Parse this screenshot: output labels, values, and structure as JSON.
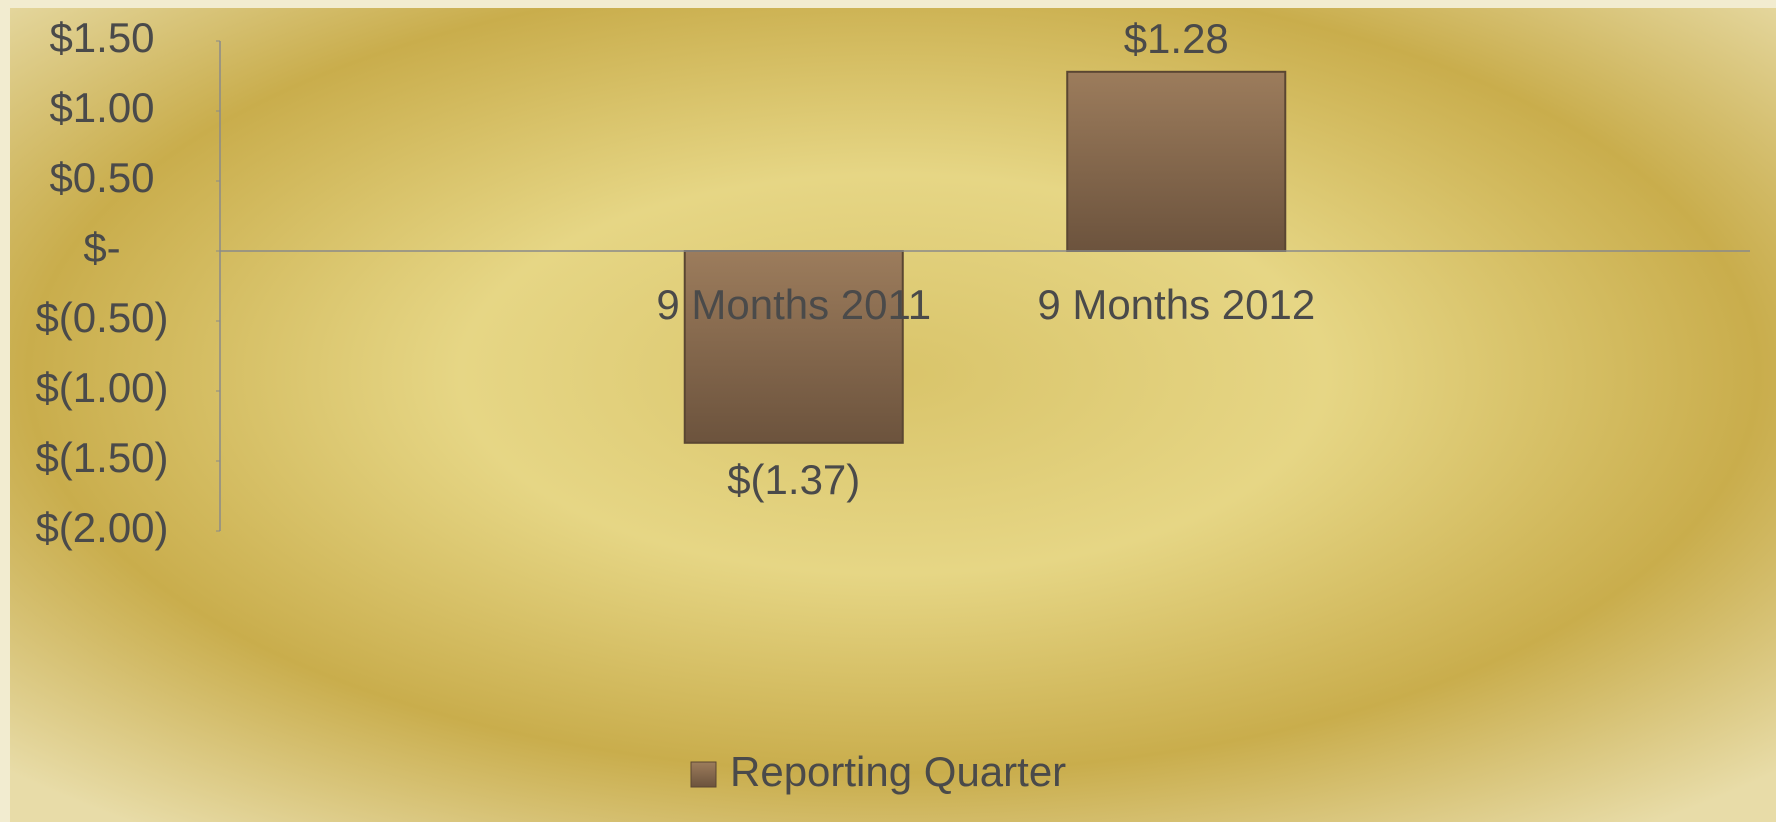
{
  "chart_data": {
    "type": "bar",
    "categories": [
      null,
      "9 Months 2011",
      "9 Months 2012",
      null
    ],
    "series": [
      {
        "name": "Reporting Quarter",
        "color": "#8a6d52",
        "values": [
          null,
          -1.37,
          1.28,
          null
        ],
        "value_labels": [
          null,
          "$(1.37)",
          "$1.28",
          null
        ]
      }
    ],
    "ylim": [
      -2,
      1.5
    ],
    "yticks": [
      {
        "value": 1.5,
        "label": "$1.50"
      },
      {
        "value": 1,
        "label": "$1.00"
      },
      {
        "value": 0.5,
        "label": "$0.50"
      },
      {
        "value": 0,
        "label": "$-"
      },
      {
        "value": -0.5,
        "label": "$(0.50)"
      },
      {
        "value": -1,
        "label": "$(1.00)"
      },
      {
        "value": -1.5,
        "label": "$(1.50)"
      },
      {
        "value": -2,
        "label": "$(2.00)"
      }
    ],
    "grid": false,
    "legend": "bottom"
  }
}
